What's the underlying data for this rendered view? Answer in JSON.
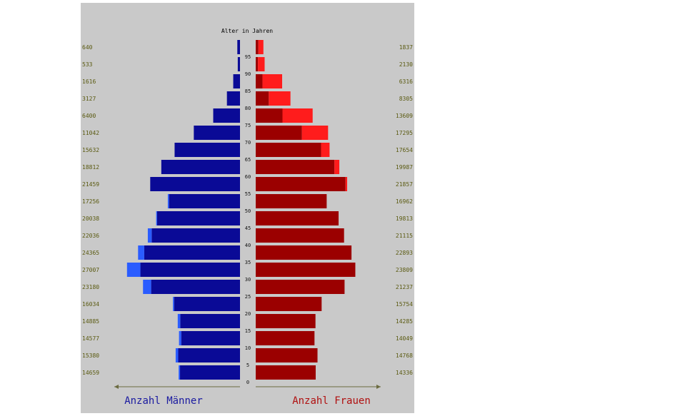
{
  "chart_data": {
    "type": "bar",
    "orientation": "horizontal-population-pyramid",
    "axis_title": "Alter in Jahren",
    "legend": {
      "male": "Anzahl Männer",
      "female": "Anzahl Frauen"
    },
    "colors": {
      "male_main": "#0a0a96",
      "male_surplus": "#2a5cff",
      "female_main": "#9b0000",
      "female_surplus": "#ff1c1c",
      "panel": "#c9c9c9"
    },
    "age_groups": [
      {
        "age": "0",
        "male": 14659,
        "female": 14336,
        "male_label": "14659",
        "female_label": "14336"
      },
      {
        "age": "5",
        "male": 15380,
        "female": 14768,
        "male_label": "15380",
        "female_label": "14768"
      },
      {
        "age": "10",
        "male": 14577,
        "female": 14049,
        "male_label": "14577",
        "female_label": "14049"
      },
      {
        "age": "15",
        "male": 14885,
        "female": 14285,
        "male_label": "14885",
        "female_label": "14285"
      },
      {
        "age": "20",
        "male": 16034,
        "female": 15754,
        "male_label": "16034",
        "female_label": "15754"
      },
      {
        "age": "25",
        "male": 23180,
        "female": 21237,
        "male_label": "23180",
        "female_label": "21237"
      },
      {
        "age": "30",
        "male": 27007,
        "female": 23809,
        "male_label": "27007",
        "female_label": "23809"
      },
      {
        "age": "35",
        "male": 24365,
        "female": 22893,
        "male_label": "24365",
        "female_label": "22893"
      },
      {
        "age": "40",
        "male": 22036,
        "female": 21115,
        "male_label": "22036",
        "female_label": "21115"
      },
      {
        "age": "45",
        "male": 20038,
        "female": 19813,
        "male_label": "20038",
        "female_label": "19813"
      },
      {
        "age": "50",
        "male": 17256,
        "female": 16962,
        "male_label": "17256",
        "female_label": "16962"
      },
      {
        "age": "55",
        "male": 21459,
        "female": 21857,
        "male_label": "21459",
        "female_label": "21857"
      },
      {
        "age": "60",
        "male": 18812,
        "female": 19987,
        "male_label": "18812",
        "female_label": "19987"
      },
      {
        "age": "65",
        "male": 15632,
        "female": 17654,
        "male_label": "15632",
        "female_label": "17654"
      },
      {
        "age": "70",
        "male": 11042,
        "female": 17295,
        "male_label": "11042",
        "female_label": "17295"
      },
      {
        "age": "75",
        "male": 6400,
        "female": 13609,
        "male_label": "6400",
        "female_label": "13609"
      },
      {
        "age": "80",
        "male": 3127,
        "female": 8305,
        "male_label": "3127",
        "female_label": "8305"
      },
      {
        "age": "85",
        "male": 1616,
        "female": 6316,
        "male_label": "1616",
        "female_label": "6316"
      },
      {
        "age": "90",
        "male": 533,
        "female": 2130,
        "male_label": "533",
        "female_label": "2130"
      },
      {
        "age": "95",
        "male": 640,
        "female": 1837,
        "male_label": "640",
        "female_label": "1837"
      }
    ],
    "xlim": [
      0,
      28000
    ],
    "grid": false
  }
}
